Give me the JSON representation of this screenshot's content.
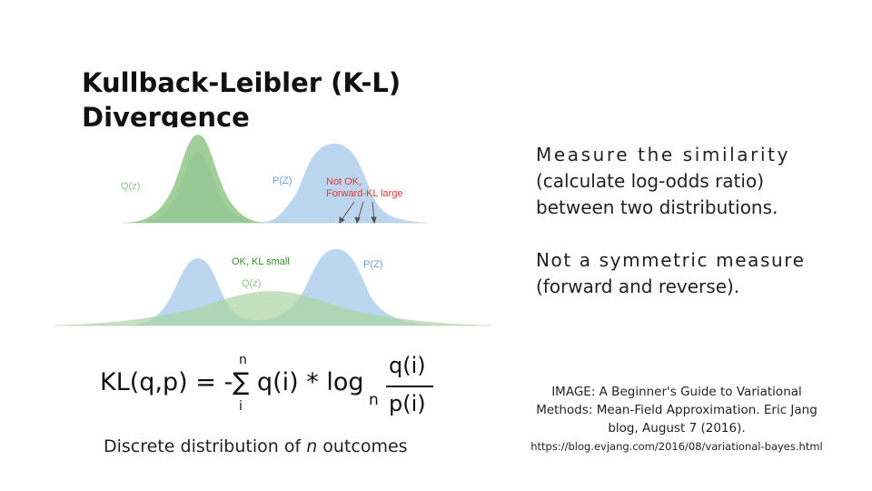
{
  "title": {
    "line1": "Kullback-Leibler (K-L)",
    "line2": "Divergence"
  },
  "description": {
    "p1_line1": "Measure the similarity",
    "p1_line2": "(calculate log-odds ratio)",
    "p1_line3": "between two distributions.",
    "p2_line1": "Not a symmetric measure",
    "p2_line2": "(forward and reverse)."
  },
  "figure": {
    "top_q_label": "Q(z)",
    "top_p_label": "P(Z)",
    "top_note_1": "Not OK,",
    "top_note_2": "Forward-KL large",
    "bottom_ok_label": "OK, KL small",
    "bottom_q_label": "Q(z)",
    "bottom_p_label": "P(Z)",
    "colors": {
      "q": "#8fc786",
      "p": "#a7c8ea",
      "note_red": "#e53935",
      "ok_green": "#3a8f2e",
      "label_blue": "#6a9fd8"
    }
  },
  "formula": {
    "main": "KL(q,p) = -∑ q(i) * log",
    "sigma_top": "n",
    "sigma_bottom": "i",
    "log_base": "n",
    "numerator": "q(i)",
    "denominator": "p(i)"
  },
  "caption": {
    "prefix": "Discrete distribution of ",
    "var": "n",
    "suffix": " outcomes"
  },
  "credit": {
    "line1": "IMAGE: A Beginner's Guide to Variational",
    "line2": "Methods: Mean-Field Approximation. Eric Jang",
    "line3": "blog, August 7 (2016).",
    "url": "https://blog.evjang.com/2016/08/variational-bayes.html"
  }
}
